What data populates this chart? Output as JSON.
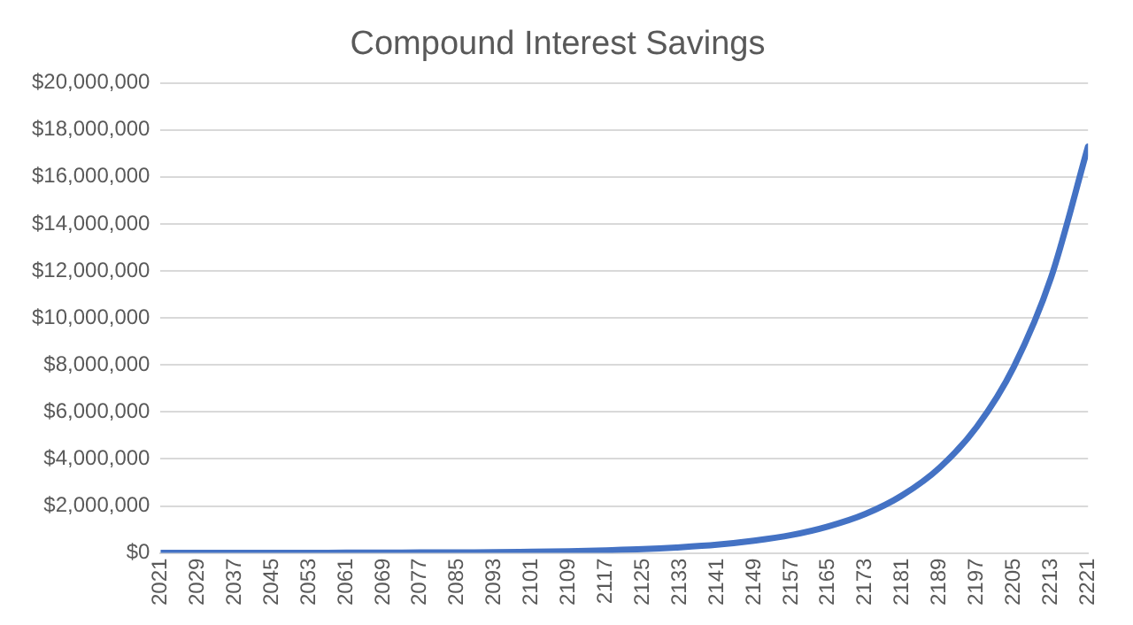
{
  "chart_data": {
    "type": "line",
    "title": "Compound Interest Savings",
    "x": [
      2021,
      2029,
      2037,
      2045,
      2053,
      2061,
      2069,
      2077,
      2085,
      2093,
      2101,
      2109,
      2117,
      2125,
      2133,
      2141,
      2149,
      2157,
      2165,
      2173,
      2181,
      2189,
      2197,
      2205,
      2213,
      2221
    ],
    "series": [
      {
        "color": "#4472c4",
        "values": [
          0,
          0,
          0,
          0,
          0,
          10000,
          10000,
          20000,
          20000,
          30000,
          50000,
          70000,
          110000,
          160000,
          240000,
          350000,
          520000,
          760000,
          1130000,
          1660000,
          2460000,
          3630000,
          5360000,
          7920000,
          11700000,
          17290000
        ]
      }
    ],
    "xlim": [
      2021,
      2221
    ],
    "xticks": [
      2021,
      2029,
      2037,
      2045,
      2053,
      2061,
      2069,
      2077,
      2085,
      2093,
      2101,
      2109,
      2117,
      2125,
      2133,
      2141,
      2149,
      2157,
      2165,
      2173,
      2181,
      2189,
      2197,
      2205,
      2213,
      2221
    ],
    "ylim": [
      0,
      20000000
    ],
    "yticks": [
      {
        "value": 0,
        "label": "$0"
      },
      {
        "value": 2000000,
        "label": "$2,000,000"
      },
      {
        "value": 4000000,
        "label": "$4,000,000"
      },
      {
        "value": 6000000,
        "label": "$6,000,000"
      },
      {
        "value": 8000000,
        "label": "$8,000,000"
      },
      {
        "value": 10000000,
        "label": "$10,000,000"
      },
      {
        "value": 12000000,
        "label": "$12,000,000"
      },
      {
        "value": 14000000,
        "label": "$14,000,000"
      },
      {
        "value": 16000000,
        "label": "$16,000,000"
      },
      {
        "value": 18000000,
        "label": "$18,000,000"
      },
      {
        "value": 20000000,
        "label": "$20,000,000"
      }
    ],
    "grid": "y",
    "legend": false,
    "marker": "none",
    "line_style": "solid"
  }
}
